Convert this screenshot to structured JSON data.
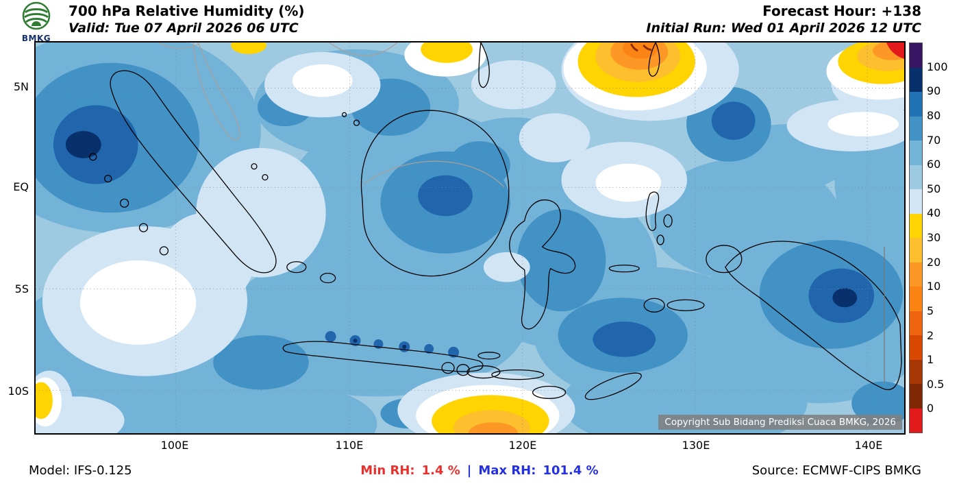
{
  "header": {
    "logo_text": "BMKG",
    "title": "700 hPa Relative Humidity (%)",
    "valid": "Valid: Tue 07 April 2026 06 UTC",
    "forecast_hour": "Forecast Hour: +138",
    "initial_run": "Initial Run: Wed 01 April 2026 12 UTC"
  },
  "map": {
    "y_ticks": [
      "5N",
      "EQ",
      "5S",
      "10S"
    ],
    "x_ticks": [
      "100E",
      "110E",
      "120E",
      "130E",
      "140E"
    ],
    "copyright": "Copyright Sub Bidang Prediksi Cuaca BMKG, 2026"
  },
  "colorbar": {
    "unit": "%",
    "tick_labels": [
      "100",
      "90",
      "80",
      "70",
      "60",
      "50",
      "40",
      "30",
      "20",
      "10",
      "5",
      "2",
      "1",
      "0.5",
      "0"
    ],
    "band_colors": [
      "#371563",
      "#08306b",
      "#2171b5",
      "#4292c6",
      "#74b3d8",
      "#9ecae1",
      "#d2e5f4",
      "#ffd400",
      "#fdbf2d",
      "#fd9827",
      "#fb8414",
      "#ef6410",
      "#d94801",
      "#a63603",
      "#7f2704",
      "#e31a1c"
    ]
  },
  "footer": {
    "model": "Model: IFS-0.125",
    "min_label": "Min RH:",
    "min_value": "1.4 %",
    "separator": "|",
    "max_label": "Max RH:",
    "max_value": "101.4 %",
    "source": "Source: ECMWF-CIPS BMKG"
  },
  "colors": {
    "min_rh_text": "#e8312d",
    "max_rh_text": "#2430e0",
    "sea_base": "#9ecae1",
    "coastline": "#000000",
    "copyright_bg": "#808080"
  }
}
